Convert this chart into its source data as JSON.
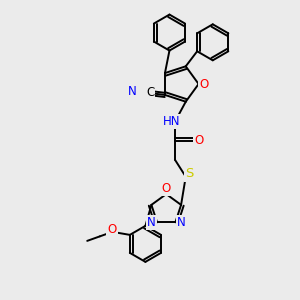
{
  "bg_color": "#ebebeb",
  "atom_colors": {
    "C": "#000000",
    "N": "#0000ff",
    "O": "#ff0000",
    "S": "#cccc00",
    "H": "#888888"
  },
  "bond_color": "#000000",
  "bond_width": 1.4,
  "font_size": 8.5
}
